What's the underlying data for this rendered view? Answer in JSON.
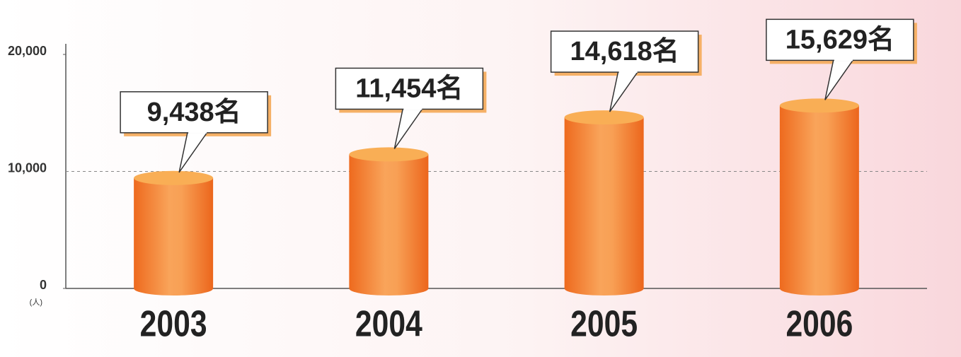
{
  "chart_data": {
    "type": "bar",
    "categories": [
      "2003",
      "2004",
      "2005",
      "2006"
    ],
    "values": [
      9438,
      11454,
      14618,
      15629
    ],
    "value_labels": [
      "9,438名",
      "11,454名",
      "14,618名",
      "15,629名"
    ],
    "color": "#f07a2a",
    "ylim": [
      0,
      20000
    ],
    "yticks": [
      0,
      {
        "value": 10000,
        "label": "10,000"
      },
      {
        "value": 20000,
        "label": "20,000"
      }
    ],
    "y_unit": "(人)",
    "grid": true
  }
}
